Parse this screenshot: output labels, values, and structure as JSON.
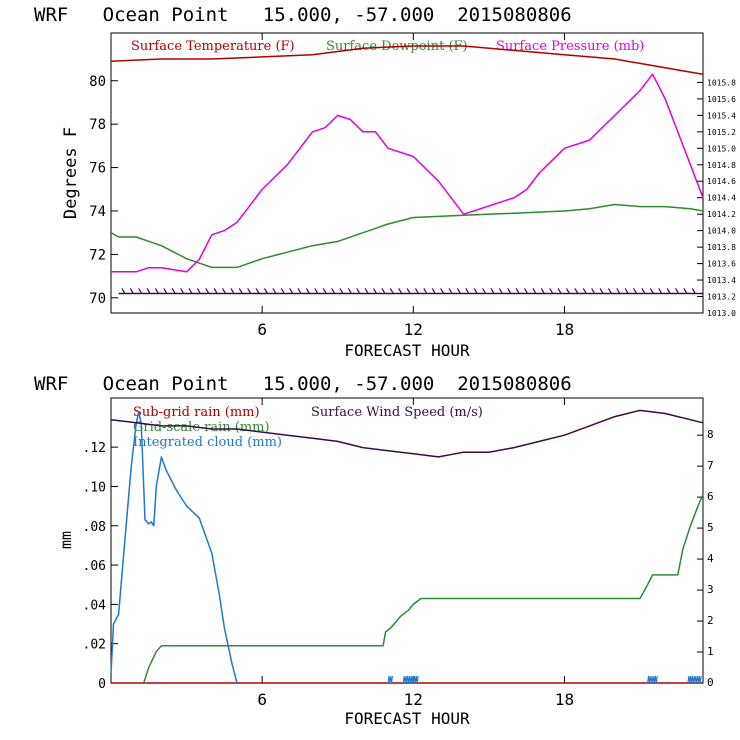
{
  "colors": {
    "temperature": "#b00000",
    "dewpoint": "#2e8b2e",
    "pressure": "#e000e0",
    "subgrid_rain": "#b00000",
    "grid_rain": "#2e8b2e",
    "cloud": "#1e78d0",
    "wind": "#3a0a4a",
    "axis": "#000000"
  },
  "chart_data": [
    {
      "type": "line",
      "title": "WRF   Ocean Point   15.000, -57.000  2015080806",
      "xlabel": "FORECAST HOUR",
      "ylabel": "Degrees F",
      "xlim": [
        0,
        23.5
      ],
      "ylim": [
        69.3,
        82.2
      ],
      "y2lim": [
        1013.0,
        1016.4
      ],
      "xticks": [
        6,
        12,
        18
      ],
      "yticks": [
        70,
        72,
        74,
        76,
        78,
        80
      ],
      "y2ticks": [
        1013.0,
        1013.2,
        1013.4,
        1013.6,
        1013.8,
        1014.0,
        1014.2,
        1014.4,
        1014.6,
        1014.8,
        1015.0,
        1015.2,
        1015.4,
        1015.6,
        1015.8
      ],
      "y2tick_labels": [
        "1013.0",
        "1013.2",
        "1013.4",
        "1013.6",
        "1013.8",
        "1014.0",
        "1014.2",
        "1014.4",
        "1014.6",
        "1014.8",
        "1015.0",
        "1015.2",
        "1015.4",
        "1015.6",
        "1015.8"
      ],
      "legend": [
        "Surface Temperature (F)",
        "Surface Dewpoint (F)",
        "Surface Pressure (mb)"
      ],
      "series": [
        {
          "name": "Surface Temperature (F)",
          "color_key": "temperature",
          "axis": "left",
          "x": [
            0,
            2,
            4,
            6,
            8,
            10,
            12,
            14,
            16,
            18,
            20,
            21,
            22,
            23,
            23.5
          ],
          "y": [
            80.9,
            81.0,
            81.0,
            81.1,
            81.2,
            81.5,
            81.6,
            81.6,
            81.4,
            81.2,
            81.0,
            80.8,
            80.6,
            80.4,
            80.3
          ]
        },
        {
          "name": "Surface Dewpoint (F)",
          "color_key": "dewpoint",
          "axis": "left",
          "x": [
            0,
            0.3,
            1,
            2,
            3,
            4,
            5,
            6,
            7,
            8,
            9,
            10,
            11,
            12,
            14,
            16,
            18,
            19,
            20,
            21,
            22,
            23,
            23.5
          ],
          "y": [
            73.0,
            72.8,
            72.8,
            72.4,
            71.8,
            71.4,
            71.4,
            71.8,
            72.1,
            72.4,
            72.6,
            73.0,
            73.4,
            73.7,
            73.8,
            73.9,
            74.0,
            74.1,
            74.3,
            74.2,
            74.2,
            74.1,
            74.0
          ]
        },
        {
          "name": "Surface Pressure (mb)",
          "color_key": "pressure",
          "axis": "right",
          "x": [
            0,
            1,
            1.5,
            2,
            3,
            3.5,
            4,
            4.5,
            5,
            6,
            7,
            8,
            8.5,
            9,
            9.5,
            10,
            10.5,
            11,
            12,
            13,
            14,
            14.5,
            15,
            16,
            16.5,
            17,
            18,
            19,
            19.5,
            20,
            21,
            21.5,
            22,
            23,
            23.5
          ],
          "y": [
            1013.5,
            1013.5,
            1013.55,
            1013.55,
            1013.5,
            1013.65,
            1013.95,
            1014.0,
            1014.1,
            1014.5,
            1014.8,
            1015.2,
            1015.25,
            1015.4,
            1015.35,
            1015.2,
            1015.2,
            1015.0,
            1014.9,
            1014.6,
            1014.2,
            1014.25,
            1014.3,
            1014.4,
            1014.5,
            1014.7,
            1015.0,
            1015.1,
            1015.25,
            1015.4,
            1015.7,
            1015.9,
            1015.6,
            1014.8,
            1014.4
          ]
        },
        {
          "name": "Wind barbs",
          "color_key": "wind",
          "axis": "left",
          "kind": "barbs",
          "x_start": 0.3,
          "x_end": 23.5,
          "y": 70.2
        }
      ]
    },
    {
      "type": "line",
      "title": "WRF   Ocean Point   15.000, -57.000  2015080806",
      "xlabel": "FORECAST HOUR",
      "ylabel": "mm",
      "xlim": [
        0,
        23.5
      ],
      "ylim": [
        0,
        0.145
      ],
      "y2lim": [
        0,
        9.2
      ],
      "xticks": [
        6,
        12,
        18
      ],
      "yticks": [
        0,
        0.02,
        0.04,
        0.06,
        0.08,
        0.1,
        0.12
      ],
      "ytick_labels": [
        "0",
        ".02",
        ".04",
        ".06",
        ".08",
        ".10",
        ".12"
      ],
      "y2ticks": [
        0,
        1,
        2,
        3,
        4,
        5,
        6,
        7,
        8
      ],
      "legend": [
        "Sub-grid rain (mm)",
        "Grid-scale rain (mm)",
        "Integrated cloud (mm)",
        "Surface Wind Speed (m/s)"
      ],
      "series": [
        {
          "name": "Sub-grid rain (mm)",
          "color_key": "subgrid_rain",
          "axis": "left",
          "x": [
            0,
            23.5
          ],
          "y": [
            0,
            0
          ]
        },
        {
          "name": "Grid-scale rain (mm)",
          "color_key": "grid_rain",
          "axis": "left",
          "x": [
            1.3,
            1.5,
            1.8,
            2.0,
            10.8,
            10.9,
            11.1,
            11.3,
            11.5,
            11.8,
            12.0,
            12.3,
            13,
            20,
            21.0,
            21.3,
            21.5,
            22.5,
            22.7,
            23.0,
            23.3,
            23.5
          ],
          "y": [
            0,
            0.008,
            0.016,
            0.019,
            0.019,
            0.026,
            0.028,
            0.031,
            0.034,
            0.037,
            0.04,
            0.043,
            0.043,
            0.043,
            0.043,
            0.05,
            0.055,
            0.055,
            0.068,
            0.08,
            0.09,
            0.096
          ]
        },
        {
          "name": "Integrated cloud (mm)",
          "color_key": "cloud",
          "axis": "left",
          "x": [
            0,
            0.1,
            0.3,
            0.5,
            0.8,
            1.0,
            1.1,
            1.2,
            1.3,
            1.35,
            1.5,
            1.6,
            1.7,
            1.8,
            2.0,
            2.2,
            2.6,
            3.0,
            3.5,
            4.0,
            4.3,
            4.5,
            4.8,
            5.0
          ],
          "y": [
            0.005,
            0.03,
            0.035,
            0.065,
            0.11,
            0.132,
            0.138,
            0.132,
            0.1,
            0.083,
            0.081,
            0.082,
            0.08,
            0.1,
            0.115,
            0.108,
            0.098,
            0.09,
            0.084,
            0.066,
            0.045,
            0.028,
            0.01,
            0.0
          ]
        },
        {
          "name": "Surface Wind Speed (m/s)",
          "color_key": "wind",
          "axis": "right",
          "x": [
            0,
            1,
            2,
            3,
            4,
            5,
            6,
            7,
            8,
            9,
            10,
            11,
            12,
            13,
            14,
            15,
            16,
            17,
            18,
            19,
            20,
            21,
            22,
            23,
            23.5
          ],
          "y": [
            8.5,
            8.4,
            8.3,
            8.3,
            8.2,
            8.2,
            8.1,
            8.0,
            7.9,
            7.8,
            7.6,
            7.5,
            7.4,
            7.3,
            7.45,
            7.45,
            7.6,
            7.8,
            8.0,
            8.3,
            8.6,
            8.8,
            8.7,
            8.5,
            8.4
          ]
        }
      ]
    }
  ]
}
